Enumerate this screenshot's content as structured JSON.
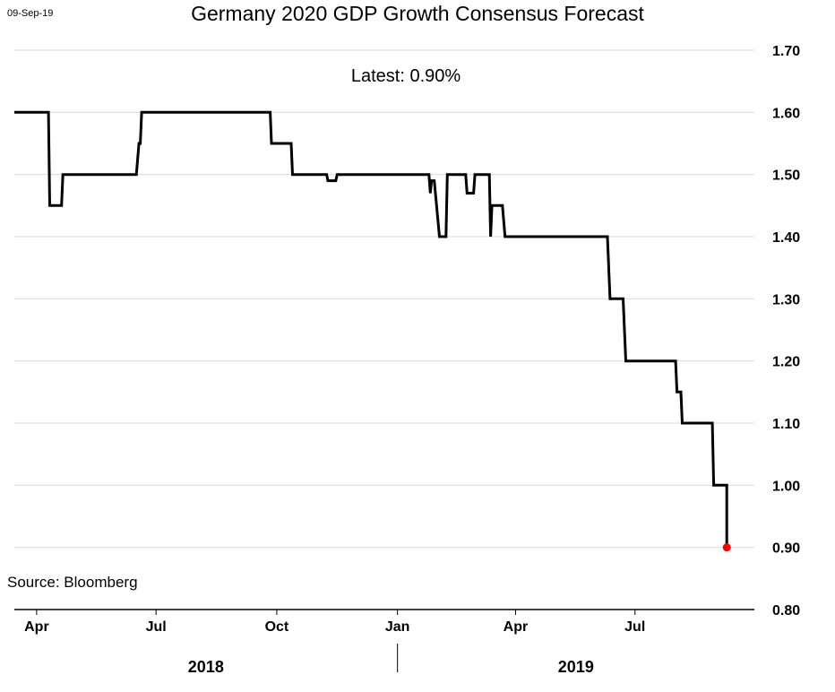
{
  "header": {
    "date_stamp": "09-Sep-19",
    "title": "Germany 2020 GDP Growth Consensus Forecast",
    "latest_label": "Latest:  0.90%"
  },
  "footer": {
    "source": "Source: Bloomberg"
  },
  "chart_data": {
    "type": "line",
    "title": "Germany 2020 GDP Growth Consensus Forecast",
    "xlabel": "",
    "ylabel": "",
    "ylim": [
      0.8,
      1.7
    ],
    "y_ticks": [
      "0.80",
      "0.90",
      "1.00",
      "1.10",
      "1.20",
      "1.30",
      "1.40",
      "1.50",
      "1.60",
      "1.70"
    ],
    "x_range": [
      "2018-03-15",
      "2019-09-30"
    ],
    "x_ticks": [
      {
        "date": "2018-04-01",
        "label": "Apr"
      },
      {
        "date": "2018-07-01",
        "label": "Jul"
      },
      {
        "date": "2018-10-01",
        "label": "Oct"
      },
      {
        "date": "2019-01-01",
        "label": "Jan"
      },
      {
        "date": "2019-04-01",
        "label": "Apr"
      },
      {
        "date": "2019-07-01",
        "label": "Jul"
      }
    ],
    "year_labels": [
      {
        "label": "2018",
        "from": "2018-03-15",
        "to": "2019-01-01"
      },
      {
        "label": "2019",
        "from": "2019-01-01",
        "to": "2019-09-30"
      }
    ],
    "grid": "horizontal",
    "line_color": "#000000",
    "end_marker_color": "#ff0000",
    "series": [
      {
        "points": [
          {
            "x": "2018-03-15",
            "y": 1.6
          },
          {
            "x": "2018-04-10",
            "y": 1.6
          },
          {
            "x": "2018-04-11",
            "y": 1.45
          },
          {
            "x": "2018-04-20",
            "y": 1.45
          },
          {
            "x": "2018-04-21",
            "y": 1.5
          },
          {
            "x": "2018-06-16",
            "y": 1.5
          },
          {
            "x": "2018-06-18",
            "y": 1.55
          },
          {
            "x": "2018-06-19",
            "y": 1.55
          },
          {
            "x": "2018-06-20",
            "y": 1.6
          },
          {
            "x": "2018-09-26",
            "y": 1.6
          },
          {
            "x": "2018-09-27",
            "y": 1.55
          },
          {
            "x": "2018-10-12",
            "y": 1.55
          },
          {
            "x": "2018-10-13",
            "y": 1.5
          },
          {
            "x": "2018-11-08",
            "y": 1.5
          },
          {
            "x": "2018-11-09",
            "y": 1.49
          },
          {
            "x": "2018-11-15",
            "y": 1.49
          },
          {
            "x": "2018-11-16",
            "y": 1.5
          },
          {
            "x": "2019-01-25",
            "y": 1.5
          },
          {
            "x": "2019-01-26",
            "y": 1.47
          },
          {
            "x": "2019-01-27",
            "y": 1.49
          },
          {
            "x": "2019-01-29",
            "y": 1.49
          },
          {
            "x": "2019-02-02",
            "y": 1.4
          },
          {
            "x": "2019-02-07",
            "y": 1.4
          },
          {
            "x": "2019-02-08",
            "y": 1.5
          },
          {
            "x": "2019-02-22",
            "y": 1.5
          },
          {
            "x": "2019-02-23",
            "y": 1.47
          },
          {
            "x": "2019-02-28",
            "y": 1.47
          },
          {
            "x": "2019-03-01",
            "y": 1.5
          },
          {
            "x": "2019-03-12",
            "y": 1.5
          },
          {
            "x": "2019-03-13",
            "y": 1.4
          },
          {
            "x": "2019-03-14",
            "y": 1.45
          },
          {
            "x": "2019-03-22",
            "y": 1.45
          },
          {
            "x": "2019-03-24",
            "y": 1.4
          },
          {
            "x": "2019-06-10",
            "y": 1.4
          },
          {
            "x": "2019-06-12",
            "y": 1.3
          },
          {
            "x": "2019-06-22",
            "y": 1.3
          },
          {
            "x": "2019-06-24",
            "y": 1.2
          },
          {
            "x": "2019-08-01",
            "y": 1.2
          },
          {
            "x": "2019-08-02",
            "y": 1.15
          },
          {
            "x": "2019-08-05",
            "y": 1.15
          },
          {
            "x": "2019-08-06",
            "y": 1.1
          },
          {
            "x": "2019-08-29",
            "y": 1.1
          },
          {
            "x": "2019-08-30",
            "y": 1.0
          },
          {
            "x": "2019-09-09",
            "y": 1.0
          },
          {
            "x": "2019-09-09",
            "y": 0.9
          }
        ]
      }
    ]
  }
}
